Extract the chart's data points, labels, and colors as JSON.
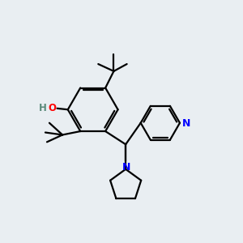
{
  "background_color": "#e9eef2",
  "line_color": "#000000",
  "bond_lw": 1.6,
  "fig_size": [
    3.0,
    3.0
  ],
  "dpi": 100,
  "xlim": [
    0,
    10
  ],
  "ylim": [
    0,
    10
  ]
}
